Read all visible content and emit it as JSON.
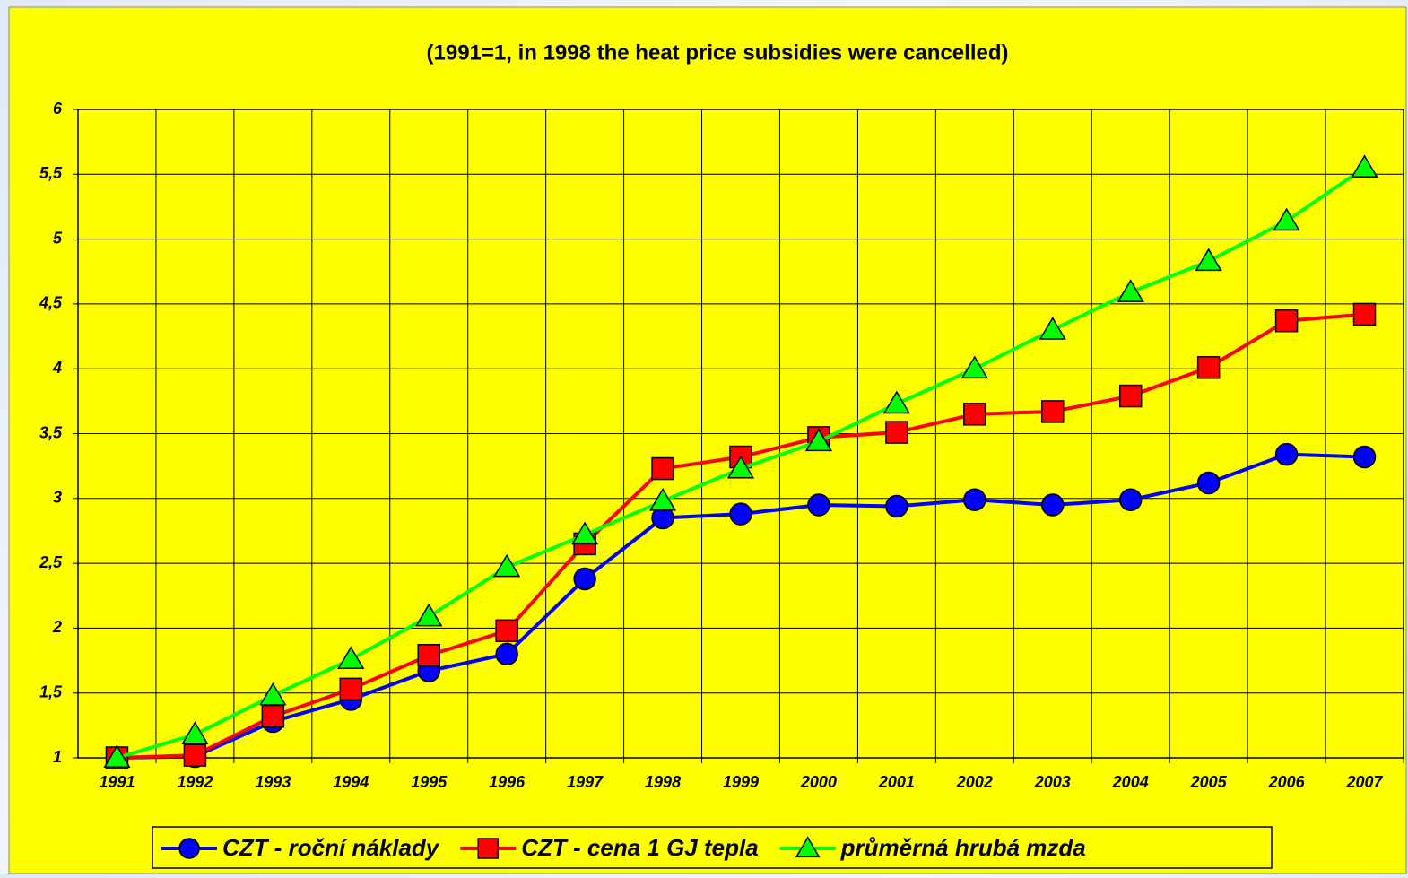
{
  "chart_data": {
    "type": "line",
    "title": "(1991=1, in 1998 the heat price subsidies were cancelled)",
    "categories": [
      "1991",
      "1992",
      "1993",
      "1994",
      "1995",
      "1996",
      "1997",
      "1998",
      "1999",
      "2000",
      "2001",
      "2002",
      "2003",
      "2004",
      "2005",
      "2006",
      "2007"
    ],
    "series": [
      {
        "name": "CZT - roční náklady",
        "color": "#0000ff",
        "marker": "circle",
        "values": [
          1.0,
          1.01,
          1.28,
          1.45,
          1.67,
          1.8,
          2.38,
          2.85,
          2.88,
          2.95,
          2.94,
          2.99,
          2.95,
          2.99,
          3.12,
          3.34,
          3.32
        ]
      },
      {
        "name": "CZT - cena 1 GJ tepla",
        "color": "#ff0000",
        "marker": "square",
        "values": [
          1.0,
          1.02,
          1.32,
          1.53,
          1.79,
          1.98,
          2.65,
          3.23,
          3.32,
          3.47,
          3.51,
          3.65,
          3.67,
          3.79,
          4.01,
          4.37,
          4.42
        ]
      },
      {
        "name": "průměrná hrubá mzda",
        "color": "#00ff00",
        "marker": "triangle",
        "values": [
          1.0,
          1.18,
          1.48,
          1.76,
          2.09,
          2.47,
          2.72,
          2.98,
          3.23,
          3.44,
          3.73,
          4.0,
          4.3,
          4.59,
          4.83,
          5.14,
          5.55
        ]
      }
    ],
    "ylim": [
      1,
      6
    ],
    "yticks": [
      1,
      {
        "value": 1.5,
        "label": "1,5"
      },
      2,
      {
        "value": 2.5,
        "label": "2,5"
      },
      3,
      {
        "value": 3.5,
        "label": "3,5"
      },
      4,
      {
        "value": 4.5,
        "label": "4,5"
      },
      5,
      {
        "value": 5.5,
        "label": "5,5"
      },
      6
    ],
    "grid": true
  }
}
